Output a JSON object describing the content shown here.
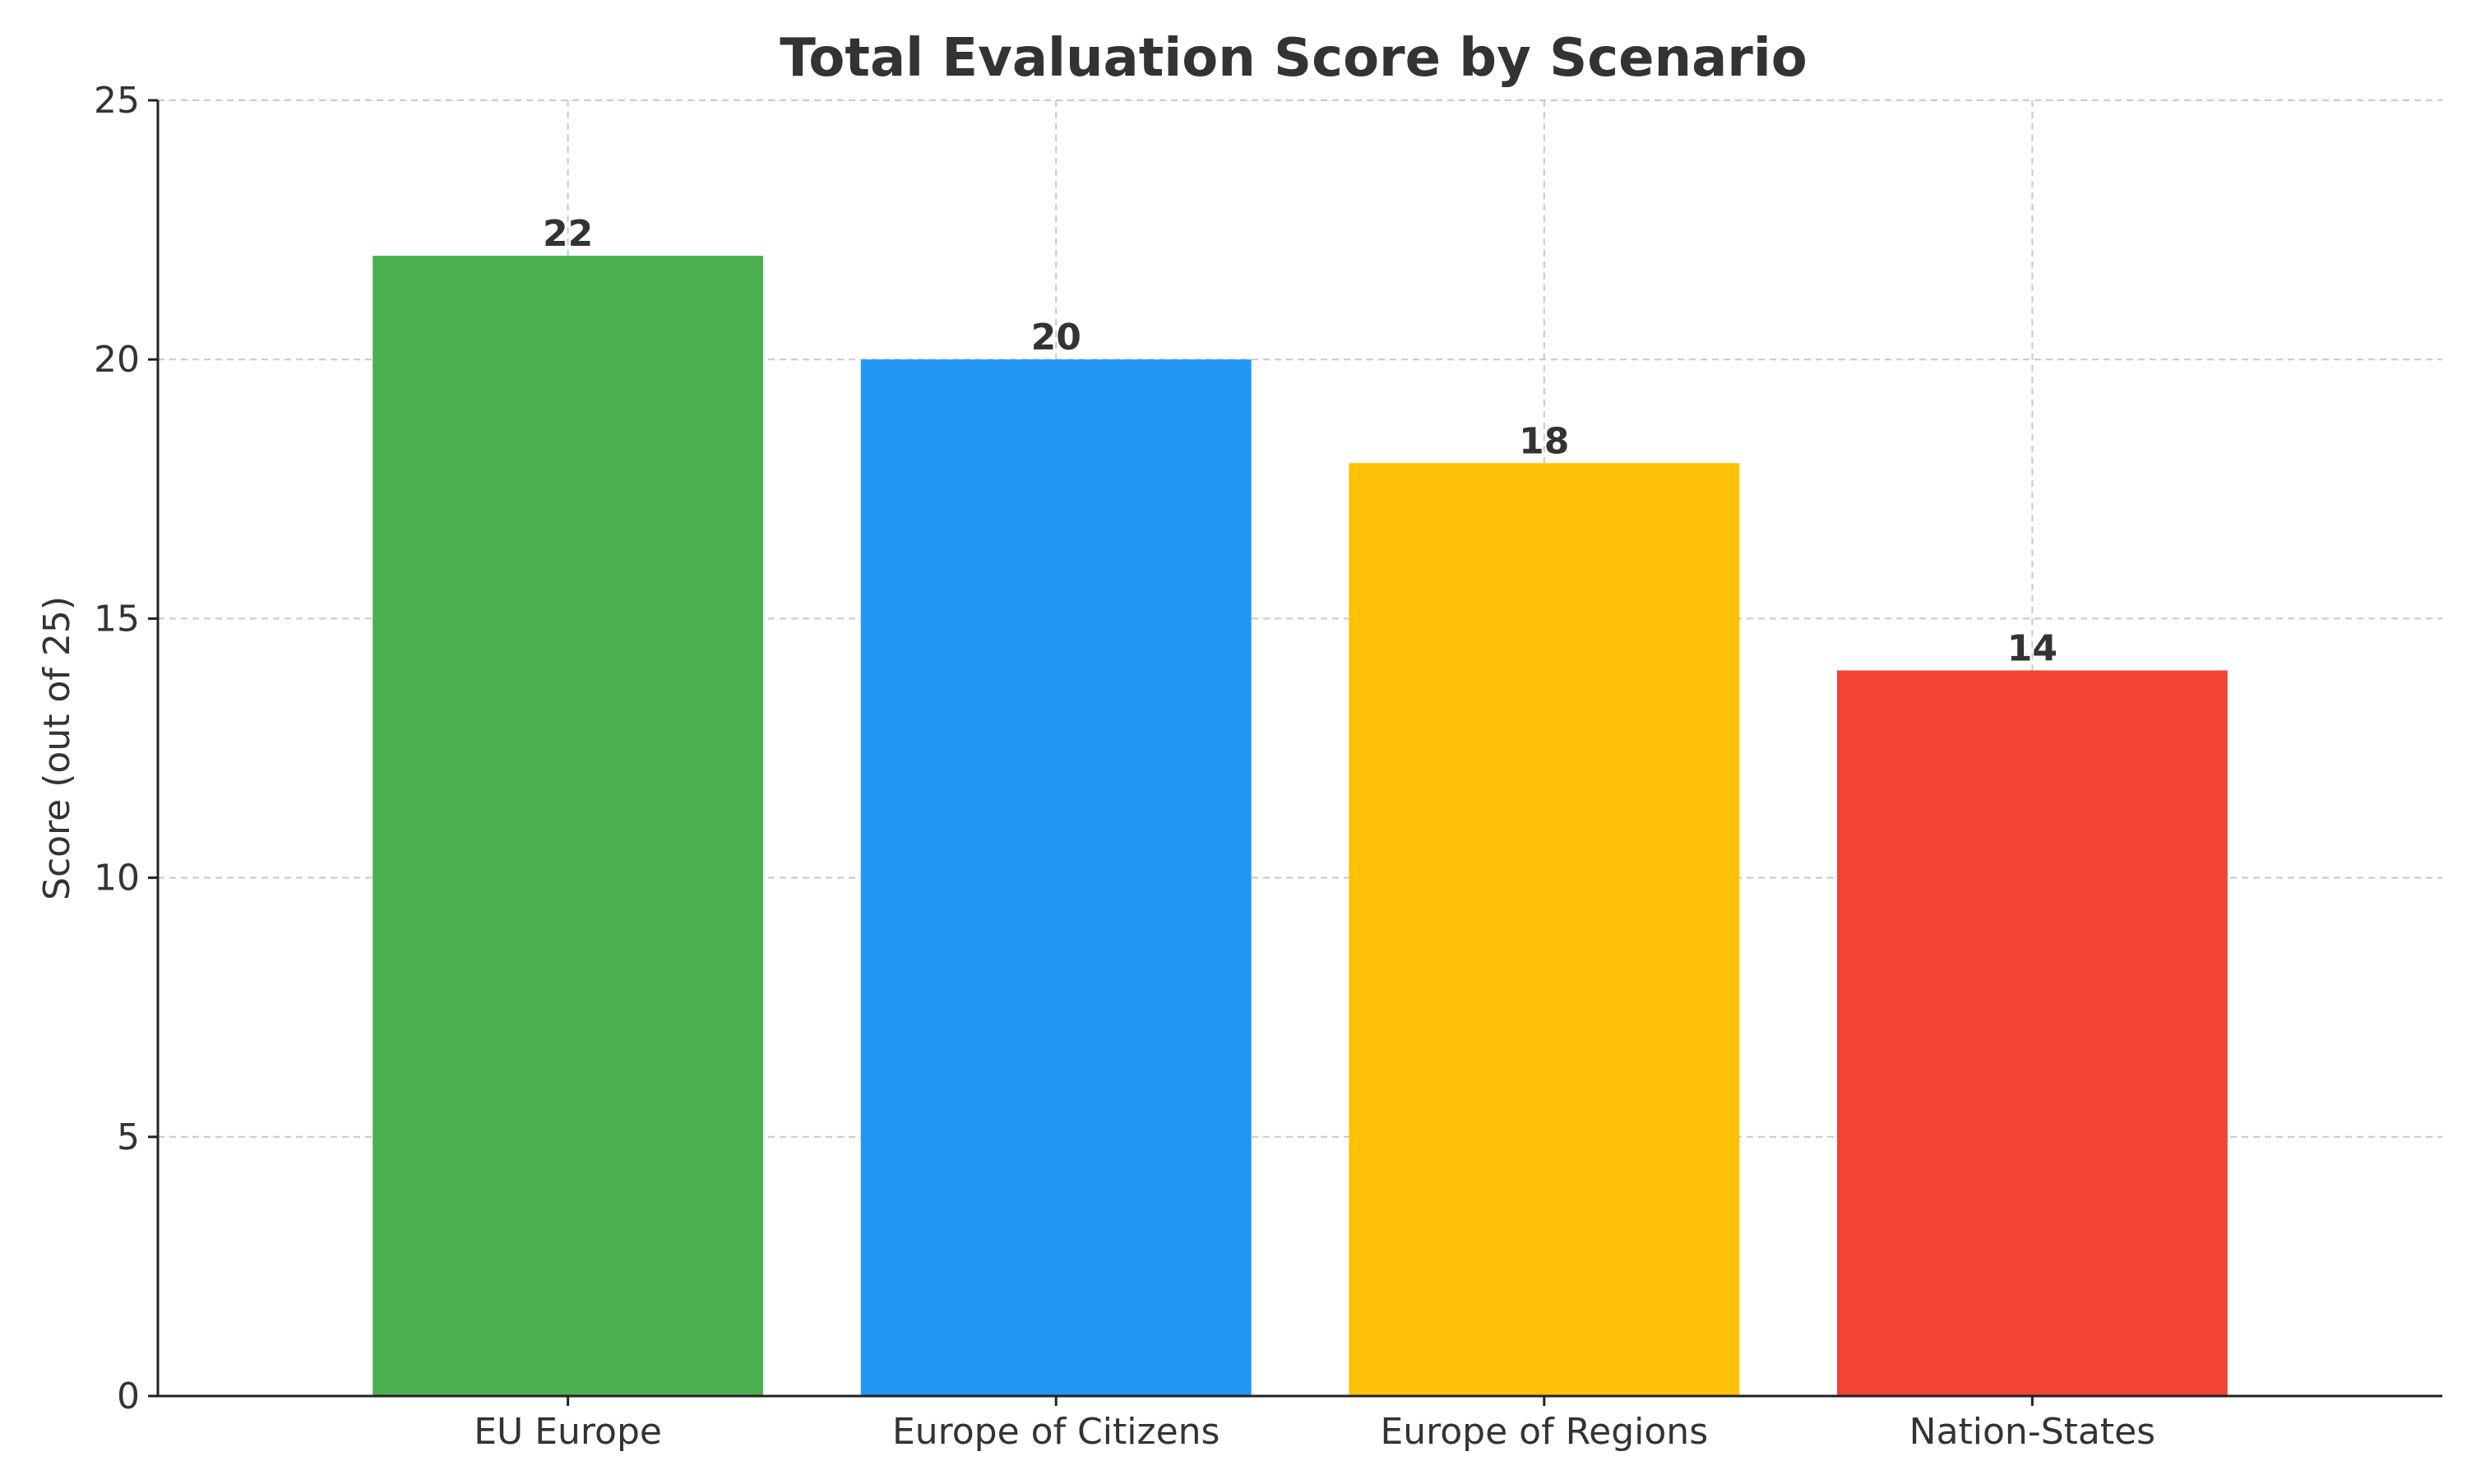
{
  "chart_data": {
    "type": "bar",
    "title": "Total Evaluation Score by Scenario",
    "xlabel": "",
    "ylabel": "Score (out of 25)",
    "categories": [
      "EU Europe",
      "Europe of Citizens",
      "Europe of Regions",
      "Nation-States"
    ],
    "values": [
      22,
      20,
      18,
      14
    ],
    "data_labels": [
      "22",
      "20",
      "18",
      "14"
    ],
    "colors": [
      "#4caf50",
      "#2196f3",
      "#ffc107",
      "#f44336"
    ],
    "ylim": [
      0,
      25
    ],
    "yticks": [
      0,
      5,
      10,
      15,
      20,
      25
    ],
    "ytick_labels": [
      "0",
      "5",
      "10",
      "15",
      "20",
      "25"
    ],
    "grid": true,
    "legend": "none"
  }
}
